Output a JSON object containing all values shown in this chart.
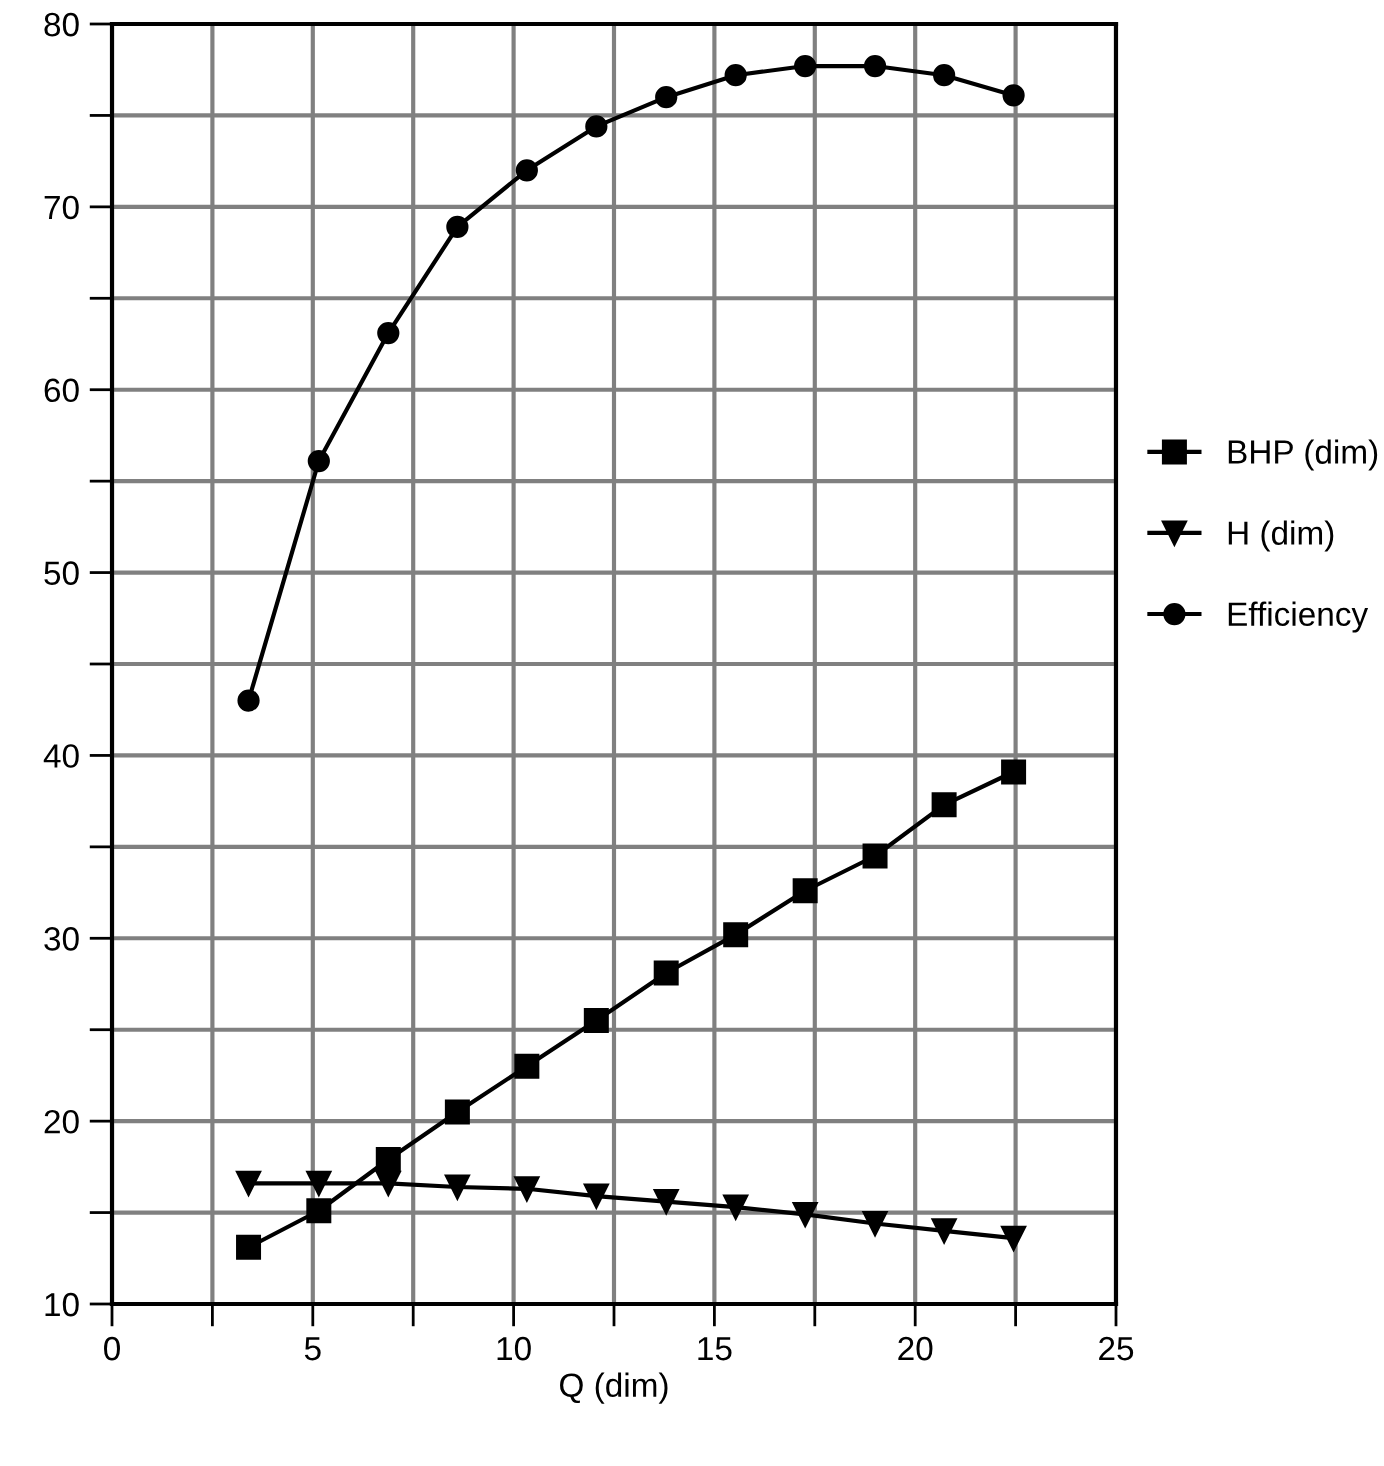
{
  "chart_data": {
    "type": "line",
    "xlabel": "Q (dim)",
    "x": [
      3.4,
      5.15,
      6.88,
      8.6,
      10.33,
      12.06,
      13.8,
      15.53,
      17.26,
      19.0,
      20.72,
      22.45
    ],
    "series": [
      {
        "name": "BHP (dim)",
        "color": "#000000",
        "marker": "square",
        "values": [
          13.1,
          15.1,
          17.9,
          20.5,
          23.0,
          25.5,
          28.1,
          30.2,
          32.6,
          34.5,
          37.3,
          39.1
        ]
      },
      {
        "name": "H (dim)",
        "color": "#000000",
        "marker": "triangle",
        "values": [
          16.6,
          16.6,
          16.6,
          16.4,
          16.3,
          15.9,
          15.6,
          15.3,
          14.9,
          14.4,
          14.0,
          13.6
        ]
      },
      {
        "name": "Efficiency",
        "color": "#000000",
        "marker": "circle",
        "values": [
          43.0,
          56.1,
          63.1,
          68.9,
          72.0,
          74.4,
          76.0,
          77.2,
          77.7,
          77.7,
          77.2,
          76.1
        ]
      }
    ],
    "xlim": [
      0,
      25
    ],
    "xticks": [
      0,
      {
        "value": 2.5,
        "label": null
      },
      5,
      {
        "value": 7.5,
        "label": null
      },
      10,
      {
        "value": 12.5,
        "label": null
      },
      15,
      {
        "value": 17.5,
        "label": null
      },
      20,
      {
        "value": 22.5,
        "label": null
      },
      25
    ],
    "ylim": [
      10,
      80
    ],
    "yticks": [
      10,
      {
        "value": 15,
        "label": null
      },
      20,
      {
        "value": 25,
        "label": null
      },
      30,
      {
        "value": 35,
        "label": null
      },
      40,
      {
        "value": 45,
        "label": null
      },
      50,
      {
        "value": 55,
        "label": null
      },
      60,
      {
        "value": 65,
        "label": null
      },
      70,
      {
        "value": 75,
        "label": null
      },
      80
    ],
    "grid": true,
    "legend": "right",
    "line_style": "solid"
  }
}
